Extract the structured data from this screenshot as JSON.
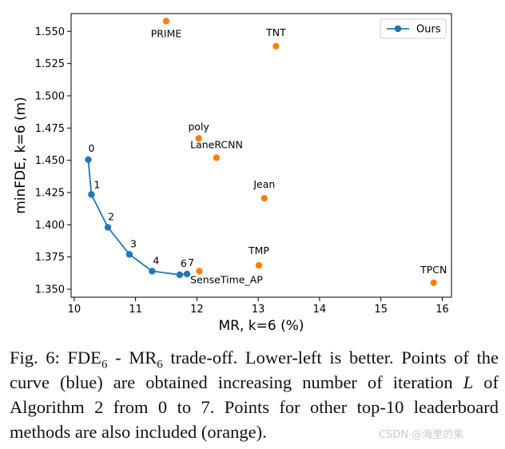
{
  "chart_data": {
    "type": "scatter",
    "title": "",
    "xlabel": "MR, k=6 (%)",
    "ylabel": "minFDE, k=6 (m)",
    "xlim": [
      9.95,
      16.15
    ],
    "ylim": [
      1.3438,
      1.5638
    ],
    "xticks": [
      10,
      11,
      12,
      13,
      14,
      15,
      16
    ],
    "xtick_labels": [
      "10",
      "11",
      "12",
      "13",
      "14",
      "15",
      "16"
    ],
    "yticks": [
      1.35,
      1.375,
      1.4,
      1.425,
      1.45,
      1.475,
      1.5,
      1.525,
      1.55
    ],
    "ytick_labels": [
      "1.350",
      "1.375",
      "1.400",
      "1.425",
      "1.450",
      "1.475",
      "1.500",
      "1.525",
      "1.550"
    ],
    "legend": {
      "position": "top-right",
      "entries": [
        "Ours"
      ]
    },
    "colors": {
      "ours": "#1f77b4",
      "others": "#ff7f0e"
    },
    "series": [
      {
        "name": "Ours",
        "style": "line-marker",
        "points": [
          {
            "label": "0",
            "x": 10.23,
            "y": 1.4505
          },
          {
            "label": "1",
            "x": 10.28,
            "y": 1.4235
          },
          {
            "label": "2",
            "x": 10.55,
            "y": 1.398
          },
          {
            "label": "3",
            "x": 10.9,
            "y": 1.377
          },
          {
            "label": "4",
            "x": 11.27,
            "y": 1.364
          },
          {
            "label": "6",
            "x": 11.72,
            "y": 1.3612
          },
          {
            "label": "7",
            "x": 11.84,
            "y": 1.3618
          }
        ]
      },
      {
        "name": "Other top-10 methods",
        "style": "marker",
        "points": [
          {
            "label": "PRIME",
            "x": 11.5,
            "y": 1.558
          },
          {
            "label": "TNT",
            "x": 13.29,
            "y": 1.5385
          },
          {
            "label": "poly",
            "x": 12.03,
            "y": 1.467
          },
          {
            "label": "LaneRCNN",
            "x": 12.32,
            "y": 1.452
          },
          {
            "label": "Jean",
            "x": 13.1,
            "y": 1.4205
          },
          {
            "label": "TMP",
            "x": 13.01,
            "y": 1.3685
          },
          {
            "label": "SenseTime_AP",
            "x": 12.04,
            "y": 1.364
          },
          {
            "label": "TPCN",
            "x": 15.86,
            "y": 1.355
          }
        ]
      }
    ]
  },
  "caption": {
    "fig_label": "Fig. 6: FDE",
    "sub1": "6",
    "mid1": " - MR",
    "sub2": "6",
    "rest1": " trade-off. Lower-left is better. Points of the curve (blue) are obtained increasing number of iteration ",
    "var_l": "L",
    "rest2": " of Algorithm 2 from 0 to 7. Points for other top-10 leaderboard methods are also included (orange)."
  },
  "watermark": "CSDN @海里的果"
}
